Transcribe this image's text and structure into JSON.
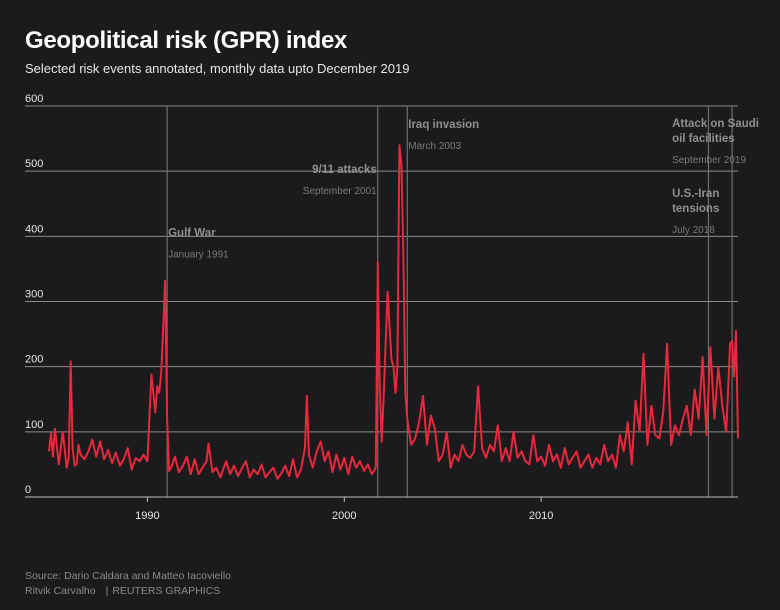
{
  "header": {
    "title": "Geopolitical risk (GPR) index",
    "subtitle": "Selected risk events annotated, monthly data upto December 2019"
  },
  "footer": {
    "source": "Source: Dario Caldara and Matteo Iacoviello",
    "credit": "Ritvik Carvalho",
    "agency": "REUTERS GRAPHICS"
  },
  "colors": {
    "background": "#1b1a1c",
    "line": "#e8283c",
    "grid": "#8c8c8c",
    "event_line": "#6e6e6e",
    "annotation_title": "#8f8f8f",
    "annotation_date": "#7a7a7a",
    "tick_label": "#e6e6e6"
  },
  "chart_data": {
    "type": "line",
    "title": "Geopolitical risk (GPR) index",
    "xlim": [
      1985.0,
      2020.0
    ],
    "ylim": [
      0,
      600
    ],
    "y_ticks": [
      "0",
      "100",
      "200",
      "300",
      "400",
      "500",
      "600"
    ],
    "x_ticks": [
      "1990",
      "2000",
      "2010"
    ],
    "grid": "horizontal",
    "series": [
      {
        "x": [
          1985.0,
          1985.1,
          1985.2,
          1985.3,
          1985.5,
          1985.7,
          1985.9,
          1986.0,
          1986.1,
          1986.2,
          1986.3,
          1986.4,
          1986.5,
          1986.6,
          1986.8,
          1987.0,
          1987.2,
          1987.4,
          1987.6,
          1987.8,
          1988.0,
          1988.2,
          1988.4,
          1988.6,
          1988.8,
          1989.0,
          1989.2,
          1989.4,
          1989.6,
          1989.8,
          1990.0,
          1990.2,
          1990.4,
          1990.5,
          1990.6,
          1990.7,
          1990.8,
          1990.9,
          1991.0,
          1991.1,
          1991.2,
          1991.4,
          1991.6,
          1991.8,
          1992.0,
          1992.2,
          1992.4,
          1992.6,
          1992.8,
          1993.0,
          1993.1,
          1993.3,
          1993.5,
          1993.7,
          1994.0,
          1994.2,
          1994.4,
          1994.6,
          1994.8,
          1995.0,
          1995.2,
          1995.4,
          1995.6,
          1995.8,
          1996.0,
          1996.2,
          1996.4,
          1996.6,
          1996.8,
          1997.0,
          1997.2,
          1997.4,
          1997.6,
          1997.8,
          1998.0,
          1998.1,
          1998.2,
          1998.4,
          1998.6,
          1998.8,
          1999.0,
          1999.2,
          1999.4,
          1999.6,
          1999.8,
          2000.0,
          2000.2,
          2000.4,
          2000.6,
          2000.8,
          2001.0,
          2001.2,
          2001.4,
          2001.6,
          2001.7,
          2001.8,
          2001.9,
          2002.0,
          2002.2,
          2002.4,
          2002.5,
          2002.6,
          2002.7,
          2002.8,
          2002.9,
          2003.0,
          2003.1,
          2003.2,
          2003.3,
          2003.4,
          2003.6,
          2003.8,
          2004.0,
          2004.2,
          2004.4,
          2004.6,
          2004.8,
          2005.0,
          2005.2,
          2005.4,
          2005.6,
          2005.8,
          2006.0,
          2006.2,
          2006.4,
          2006.6,
          2006.8,
          2007.0,
          2007.2,
          2007.4,
          2007.6,
          2007.8,
          2008.0,
          2008.2,
          2008.4,
          2008.6,
          2008.8,
          2009.0,
          2009.2,
          2009.4,
          2009.6,
          2009.8,
          2010.0,
          2010.2,
          2010.4,
          2010.6,
          2010.8,
          2011.0,
          2011.2,
          2011.4,
          2011.6,
          2011.8,
          2012.0,
          2012.2,
          2012.4,
          2012.6,
          2012.8,
          2013.0,
          2013.2,
          2013.4,
          2013.6,
          2013.8,
          2014.0,
          2014.2,
          2014.4,
          2014.6,
          2014.8,
          2015.0,
          2015.2,
          2015.4,
          2015.6,
          2015.8,
          2016.0,
          2016.2,
          2016.4,
          2016.6,
          2016.8,
          2017.0,
          2017.2,
          2017.4,
          2017.6,
          2017.8,
          2018.0,
          2018.2,
          2018.4,
          2018.6,
          2018.8,
          2019.0,
          2019.2,
          2019.4,
          2019.6,
          2019.7,
          2019.8,
          2019.9,
          2020.0
        ],
        "values": [
          70,
          98,
          62,
          105,
          50,
          100,
          45,
          60,
          208,
          75,
          48,
          50,
          80,
          65,
          58,
          70,
          88,
          62,
          85,
          58,
          72,
          52,
          68,
          48,
          58,
          75,
          42,
          60,
          55,
          65,
          55,
          188,
          130,
          170,
          160,
          190,
          260,
          332,
          120,
          40,
          45,
          62,
          38,
          48,
          62,
          35,
          58,
          35,
          45,
          55,
          82,
          38,
          45,
          30,
          55,
          35,
          48,
          32,
          44,
          55,
          30,
          42,
          35,
          50,
          30,
          38,
          45,
          28,
          36,
          48,
          32,
          58,
          30,
          42,
          75,
          155,
          65,
          45,
          70,
          85,
          55,
          70,
          38,
          65,
          42,
          60,
          35,
          62,
          45,
          55,
          40,
          50,
          35,
          45,
          360,
          170,
          85,
          155,
          315,
          210,
          200,
          160,
          200,
          540,
          510,
          380,
          160,
          120,
          100,
          80,
          90,
          115,
          155,
          80,
          125,
          105,
          55,
          65,
          100,
          45,
          65,
          55,
          80,
          65,
          60,
          70,
          170,
          75,
          60,
          80,
          70,
          110,
          55,
          75,
          55,
          100,
          60,
          70,
          55,
          50,
          95,
          55,
          62,
          48,
          80,
          55,
          65,
          45,
          75,
          50,
          60,
          70,
          45,
          55,
          65,
          45,
          60,
          50,
          80,
          55,
          65,
          45,
          95,
          70,
          115,
          50,
          148,
          100,
          220,
          80,
          140,
          95,
          90,
          130,
          235,
          80,
          110,
          95,
          120,
          140,
          95,
          165,
          120,
          215,
          95,
          230,
          120,
          200,
          140,
          100,
          235,
          240,
          185,
          255,
          90
        ]
      }
    ],
    "annotations": [
      {
        "year": 1991.0,
        "title": [
          "Gulf War"
        ],
        "date": "January 1991",
        "align": "left",
        "anchor": "line",
        "title_y": 400
      },
      {
        "year": 2001.7,
        "title": [
          "9/11 attacks"
        ],
        "date": "September 2001",
        "align": "right",
        "anchor": "line",
        "title_y": 497
      },
      {
        "year": 2003.2,
        "title": [
          "Iraq invasion"
        ],
        "date": "March 2003",
        "align": "left",
        "anchor": "line",
        "title_y": 566
      },
      {
        "year": 2018.5,
        "title": [
          "U.S.-Iran",
          "tensions"
        ],
        "date": "July 2018",
        "align": "left",
        "anchor": 2016.6,
        "title_y": 460
      },
      {
        "year": 2019.7,
        "title": [
          "Attack on Saudi",
          "oil facilities"
        ],
        "date": "September 2019",
        "align": "left",
        "anchor": 2016.6,
        "title_y": 568
      }
    ]
  }
}
